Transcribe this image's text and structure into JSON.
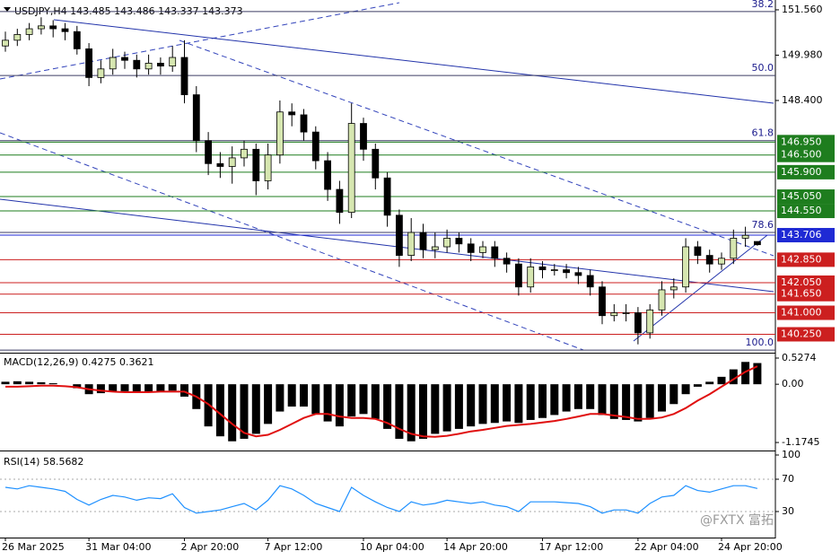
{
  "chart_data": [
    {
      "type": "candlestick",
      "title": "USDJPY,H4 143.485 143.486 143.337 143.373",
      "categories": [
        "26 Mar 2025",
        null,
        null,
        null,
        null,
        null,
        null,
        "31 Mar 04:00",
        null,
        null,
        null,
        null,
        null,
        null,
        null,
        "2 Apr 20:00",
        null,
        null,
        null,
        null,
        null,
        null,
        "7 Apr 12:00",
        null,
        null,
        null,
        null,
        null,
        null,
        null,
        "10 Apr 04:00",
        null,
        null,
        null,
        null,
        null,
        null,
        "14 Apr 20:00",
        null,
        null,
        null,
        null,
        null,
        null,
        null,
        "17 Apr 12:00",
        null,
        null,
        null,
        null,
        null,
        null,
        null,
        "22 Apr 04:00",
        null,
        null,
        null,
        null,
        null,
        null,
        "24 Apr 20:00",
        null,
        null,
        null
      ],
      "open": [
        150.3,
        150.5,
        150.7,
        150.9,
        151.0,
        150.9,
        150.8,
        150.2,
        149.2,
        149.5,
        149.9,
        149.8,
        149.5,
        149.7,
        149.6,
        149.9,
        148.6,
        147.0,
        146.2,
        146.1,
        146.4,
        146.7,
        145.6,
        146.5,
        148.0,
        147.9,
        147.3,
        146.3,
        145.3,
        144.5,
        147.6,
        146.7,
        145.7,
        144.4,
        143.0,
        143.8,
        143.2,
        143.3,
        143.6,
        143.4,
        143.1,
        143.3,
        142.9,
        142.7,
        141.9,
        142.6,
        142.5,
        142.5,
        142.4,
        142.3,
        141.9,
        140.9,
        141.0,
        141.0,
        140.3,
        141.1,
        141.8,
        141.9,
        143.3,
        143.0,
        142.7,
        142.9,
        143.6,
        143.485
      ],
      "high": [
        150.8,
        150.9,
        151.1,
        151.3,
        151.2,
        151.1,
        151.0,
        150.4,
        149.8,
        150.2,
        150.1,
        150.0,
        150.0,
        149.9,
        150.3,
        150.5,
        148.9,
        147.3,
        146.6,
        146.8,
        147.0,
        146.9,
        146.9,
        148.4,
        148.3,
        148.1,
        147.5,
        146.6,
        145.6,
        148.3,
        147.8,
        146.9,
        145.9,
        144.6,
        144.3,
        144.1,
        143.8,
        143.9,
        143.8,
        143.6,
        143.5,
        143.5,
        143.1,
        142.9,
        142.9,
        142.8,
        142.7,
        142.7,
        142.6,
        142.5,
        142.1,
        141.3,
        141.3,
        141.2,
        141.3,
        142.1,
        142.2,
        143.6,
        143.5,
        143.2,
        143.1,
        143.9,
        144.0,
        143.486
      ],
      "low": [
        150.1,
        150.3,
        150.5,
        150.7,
        150.6,
        150.5,
        150.0,
        148.9,
        149.0,
        149.3,
        149.5,
        149.2,
        149.3,
        149.3,
        149.4,
        148.3,
        146.6,
        145.8,
        145.7,
        145.5,
        146.1,
        145.1,
        145.3,
        146.2,
        147.5,
        147.0,
        146.0,
        144.9,
        144.1,
        144.3,
        146.3,
        145.3,
        144.0,
        142.6,
        142.8,
        142.9,
        142.9,
        143.1,
        143.1,
        142.8,
        142.9,
        142.6,
        142.4,
        141.6,
        141.7,
        142.2,
        142.3,
        142.2,
        142.0,
        141.6,
        140.6,
        140.7,
        140.7,
        139.9,
        140.1,
        140.9,
        141.5,
        141.7,
        142.7,
        142.4,
        142.5,
        142.7,
        143.3,
        143.337
      ],
      "close": [
        150.5,
        150.7,
        150.9,
        151.0,
        150.9,
        150.8,
        150.2,
        149.2,
        149.5,
        149.9,
        149.8,
        149.5,
        149.7,
        149.6,
        149.9,
        148.6,
        147.0,
        146.2,
        146.1,
        146.4,
        146.7,
        145.6,
        146.5,
        148.0,
        147.9,
        147.3,
        146.3,
        145.3,
        144.5,
        147.6,
        146.7,
        145.7,
        144.4,
        143.0,
        143.8,
        143.2,
        143.3,
        143.6,
        143.4,
        143.1,
        143.3,
        142.9,
        142.7,
        141.9,
        142.6,
        142.5,
        142.5,
        142.4,
        142.3,
        141.9,
        140.9,
        141.0,
        141.0,
        140.3,
        141.1,
        141.8,
        141.9,
        143.3,
        143.0,
        142.7,
        142.9,
        143.6,
        143.7,
        143.373
      ],
      "up_color": "#d6e6b0",
      "down_color": "#000000",
      "ylim": [
        139.64,
        151.84
      ],
      "yticks": [
        {
          "value": 151.56,
          "label": "151.560"
        },
        {
          "value": 149.98,
          "label": "149.980"
        },
        {
          "value": 148.4,
          "label": "148.400"
        }
      ],
      "fib": [
        {
          "label": "38.2",
          "price": 151.5
        },
        {
          "label": "50.0",
          "price": 149.27
        },
        {
          "label": "61.8",
          "price": 147.0
        },
        {
          "label": "78.6",
          "price": 143.8
        },
        {
          "label": "100.0",
          "price": 139.7
        }
      ],
      "fib_color": "#1a1a8c",
      "levels": [
        {
          "value": 146.95,
          "label": "146.950",
          "color": "#1e7d1e"
        },
        {
          "value": 146.5,
          "label": "146.500",
          "color": "#1e7d1e"
        },
        {
          "value": 145.9,
          "label": "145.900",
          "color": "#1e7d1e"
        },
        {
          "value": 145.05,
          "label": "145.050",
          "color": "#1e7d1e"
        },
        {
          "value": 144.55,
          "label": "144.550",
          "color": "#1e7d1e"
        },
        {
          "value": 143.706,
          "label": "143.706",
          "color": "#1f2ad4"
        },
        {
          "value": 142.85,
          "label": "142.850",
          "color": "#cc1f1f"
        },
        {
          "value": 142.05,
          "label": "142.050",
          "color": "#cc1f1f"
        },
        {
          "value": 141.65,
          "label": "141.650",
          "color": "#cc1f1f"
        },
        {
          "value": 141.0,
          "label": "141.000",
          "color": "#cc1f1f"
        },
        {
          "value": 140.25,
          "label": "140.250",
          "color": "#cc1f1f"
        }
      ]
    },
    {
      "type": "macd",
      "title": "MACD(12,26,9) 0.4275 0.3621",
      "series": [
        {
          "values": [
            0.05,
            0.06,
            0.05,
            0.04,
            0.02,
            0.0,
            -0.08,
            -0.2,
            -0.18,
            -0.15,
            -0.14,
            -0.15,
            -0.15,
            -0.14,
            -0.13,
            -0.25,
            -0.5,
            -0.85,
            -1.05,
            -1.15,
            -1.1,
            -1.0,
            -0.8,
            -0.55,
            -0.45,
            -0.45,
            -0.6,
            -0.75,
            -0.85,
            -0.65,
            -0.6,
            -0.7,
            -0.9,
            -1.1,
            -1.15,
            -1.1,
            -1.0,
            -0.95,
            -0.9,
            -0.85,
            -0.8,
            -0.78,
            -0.75,
            -0.78,
            -0.72,
            -0.68,
            -0.62,
            -0.55,
            -0.5,
            -0.5,
            -0.62,
            -0.7,
            -0.72,
            -0.75,
            -0.68,
            -0.55,
            -0.4,
            -0.2,
            -0.05,
            0.05,
            0.15,
            0.3,
            0.45,
            0.4275
          ],
          "color": "#000000"
        },
        {
          "values": [
            -0.05,
            -0.05,
            -0.04,
            -0.03,
            -0.03,
            -0.04,
            -0.06,
            -0.1,
            -0.13,
            -0.15,
            -0.16,
            -0.16,
            -0.16,
            -0.15,
            -0.15,
            -0.15,
            -0.25,
            -0.4,
            -0.6,
            -0.8,
            -0.98,
            -1.05,
            -1.02,
            -0.92,
            -0.8,
            -0.68,
            -0.6,
            -0.6,
            -0.65,
            -0.68,
            -0.68,
            -0.7,
            -0.78,
            -0.9,
            -1.0,
            -1.05,
            -1.06,
            -1.04,
            -1.0,
            -0.95,
            -0.92,
            -0.88,
            -0.84,
            -0.82,
            -0.8,
            -0.77,
            -0.74,
            -0.7,
            -0.65,
            -0.6,
            -0.6,
            -0.63,
            -0.66,
            -0.7,
            -0.7,
            -0.67,
            -0.6,
            -0.48,
            -0.33,
            -0.2,
            -0.05,
            0.1,
            0.25,
            0.3621
          ],
          "color": "#e01010"
        }
      ],
      "ylim": [
        -1.3,
        0.6
      ],
      "yticks": [
        0.5274,
        {
          "value": 0,
          "label": "0.00"
        },
        -1.1745
      ]
    },
    {
      "type": "line",
      "title": "RSI(14) 58.5682",
      "series": [
        {
          "values": [
            60,
            58,
            62,
            60,
            58,
            55,
            45,
            38,
            45,
            50,
            48,
            44,
            47,
            46,
            52,
            35,
            28,
            30,
            32,
            36,
            40,
            32,
            44,
            62,
            58,
            50,
            40,
            35,
            30,
            60,
            50,
            42,
            35,
            30,
            42,
            38,
            40,
            44,
            42,
            40,
            42,
            38,
            36,
            30,
            42,
            42,
            42,
            41,
            40,
            36,
            28,
            32,
            32,
            28,
            40,
            48,
            50,
            62,
            56,
            54,
            58,
            62,
            62,
            58.5682
          ],
          "color": "#1e90ff"
        }
      ],
      "ylim": [
        0,
        100
      ],
      "yticks": [
        30,
        70,
        100
      ],
      "grid_values": [
        30,
        70
      ]
    }
  ],
  "watermark": "@FXTX 富拓"
}
